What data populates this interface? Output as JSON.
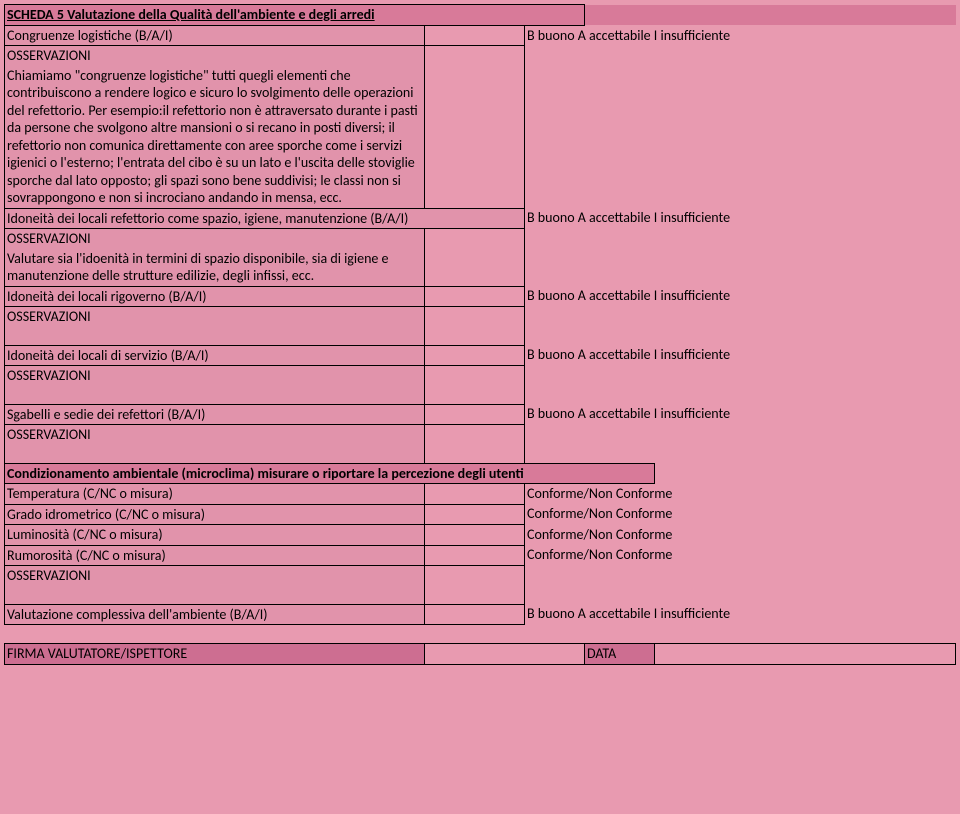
{
  "title": "SCHEDA 5 Valutazione della Qualità dell'ambiente e degli arredi",
  "legend_bai": "B buono A accettabile I insufficiente",
  "legend_cnc": "Conforme/Non Conforme",
  "osservazioni": "OSSERVAZIONI",
  "rows": {
    "r1_label": "Congruenze logistiche (B/A/I)",
    "r1_body": "Chiamiamo \"congruenze logistiche\" tutti quegli elementi che contribuiscono a rendere logico e sicuro lo svolgimento delle operazioni del refettorio. Per esempio:il refettorio non è attraversato durante i pasti da persone che svolgono altre mansioni o si recano in posti diversi; il refettorio non comunica direttamente con aree sporche come  i servizi igienici o l'esterno; l'entrata del cibo è su un lato e l'uscita delle stoviglie sporche dal lato opposto; gli spazi sono bene suddivisi; le classi non si sovrappongono e non si incrociano andando in mensa, ecc.",
    "r2_label": "Idoneità dei locali refettorio come spazio, igiene, manutenzione (B/A/I)",
    "r2_body": "Valutare sia l'idoenità in termini di spazio disponibile, sia di igiene e manutenzione delle strutture edilizie, degli infissi, ecc.",
    "r3_label": "Idoneità dei locali rigoverno (B/A/I)",
    "r4_label": "Idoneità dei locali di servizio (B/A/I)",
    "r5_label": "Sgabelli e sedie dei refettori (B/A/I)",
    "cond_title": "Condizionamento ambientale (microclima) misurare o riportare la percezione degli utenti",
    "c1": "Temperatura (C/NC o misura)",
    "c2": "Grado idrometrico (C/NC o misura)",
    "c3": "Luminosità (C/NC o misura)",
    "c4": "Rumorosità (C/NC o misura)",
    "overall": "Valutazione complessiva dell'ambiente (B/A/I)",
    "sig_valuer": "FIRMA VALUTATORE/ISPETTORE",
    "sig_date": "DATA"
  }
}
